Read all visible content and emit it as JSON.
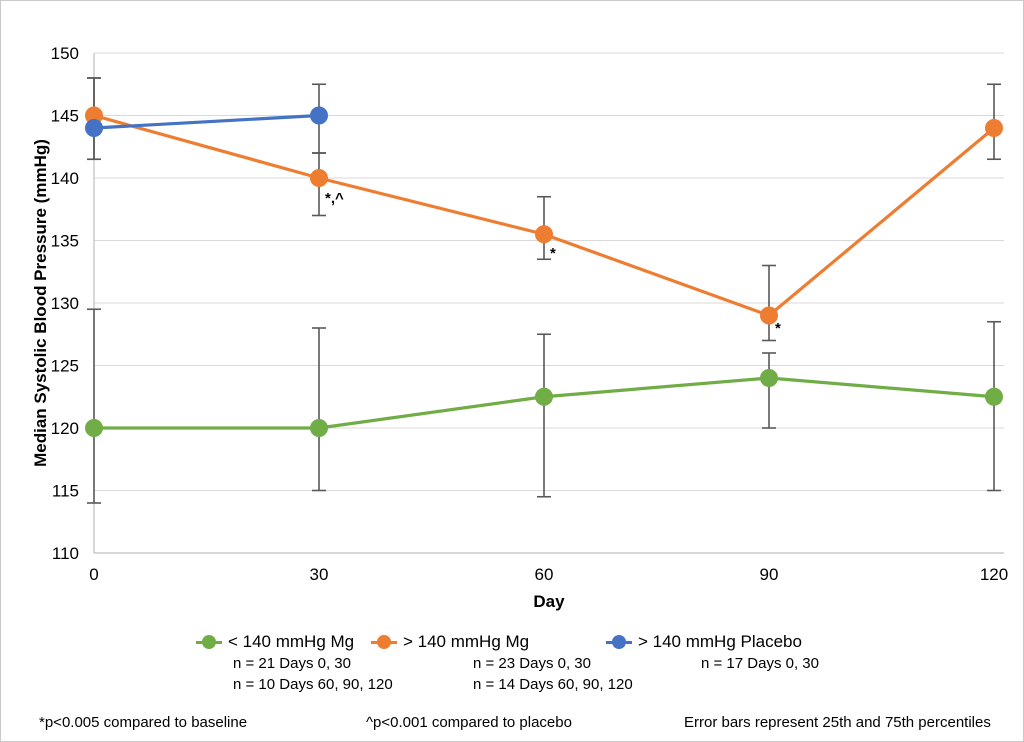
{
  "chart_data": {
    "type": "line",
    "title": "",
    "xlabel": "Day",
    "ylabel": "Median Systolic Blood Pressure (mmHg)",
    "ylim": [
      110,
      150
    ],
    "ytick_step": 5,
    "xticks": [
      0,
      30,
      60,
      90,
      120
    ],
    "grid": true,
    "legend_position": "bottom",
    "error_bar_meaning": "25th and 75th percentiles",
    "series": [
      {
        "name": "< 140 mmHg Mg",
        "color": "#70AD47",
        "x": [
          0,
          30,
          60,
          90,
          120
        ],
        "values": [
          120,
          120,
          122.5,
          124,
          122.5
        ],
        "err_low": [
          114,
          115,
          114.5,
          120,
          115
        ],
        "err_high": [
          129.5,
          128,
          127.5,
          126,
          128.5
        ],
        "n_lines": [
          "n = 21 Days 0, 30",
          "n = 10 Days 60, 90, 120"
        ]
      },
      {
        "name": "> 140 mmHg Mg",
        "color": "#ED7D31",
        "x": [
          0,
          30,
          60,
          90,
          120
        ],
        "values": [
          145,
          140,
          135.5,
          129,
          144
        ],
        "err_low": [
          141.5,
          137,
          133.5,
          127,
          141.5
        ],
        "err_high": [
          148,
          142,
          138.5,
          133,
          147.5
        ],
        "n_lines": [
          "n = 23 Days 0, 30",
          "n = 14 Days 60, 90, 120"
        ]
      },
      {
        "name": "> 140 mmHg Placebo",
        "color": "#4472C4",
        "x": [
          0,
          30
        ],
        "values": [
          144,
          145
        ],
        "err_low": [
          141.5,
          142
        ],
        "err_high": [
          148,
          147.5
        ],
        "n_lines": [
          "n = 17 Days 0, 30"
        ]
      }
    ],
    "annotations": [
      {
        "text": "*,^",
        "x": 30,
        "anchor_y": 138.0,
        "series": "> 140 mmHg Mg"
      },
      {
        "text": "*",
        "x": 60,
        "anchor_y": 133.6,
        "series": "> 140 mmHg Mg"
      },
      {
        "text": "*",
        "x": 90,
        "anchor_y": 127.6,
        "series": "> 140 mmHg Mg"
      }
    ],
    "footnotes": [
      "*p<0.005 compared to baseline",
      "^p<0.001 compared to placebo",
      "Error bars represent 25th and 75th percentiles"
    ]
  },
  "colors": {
    "gridline": "#d9d9d9",
    "axis_line": "#bfbfbf",
    "error_bar": "#595959",
    "text": "#000000"
  }
}
